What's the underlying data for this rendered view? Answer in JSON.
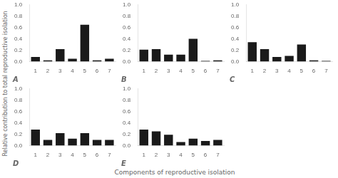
{
  "xlabel": "Components of reproductive isolation",
  "ylabel": "Relative contribution to total reproductive isolation",
  "chart_data": [
    {
      "type": "bar",
      "title": "A",
      "categories": [
        "1",
        "2",
        "3",
        "4",
        "5",
        "6",
        "7"
      ],
      "values": [
        0.08,
        0.02,
        0.22,
        0.05,
        0.65,
        0.02,
        0.05
      ],
      "color": "#1a1a1a",
      "ylim": [
        0.0,
        1.0
      ],
      "yticks": [
        {
          "value": 0,
          "label": "0.0"
        },
        0.2,
        0.4,
        0.6,
        0.8,
        {
          "value": 1,
          "label": "1.0"
        }
      ],
      "grid": false
    },
    {
      "type": "bar",
      "title": "B",
      "categories": [
        "1",
        "2",
        "3",
        "4",
        "5",
        "6",
        "7"
      ],
      "values": [
        0.21,
        0.22,
        0.12,
        0.12,
        0.4,
        0.01,
        0.02
      ],
      "color": "#1a1a1a",
      "ylim": [
        0.0,
        1.0
      ],
      "yticks": [
        {
          "value": 0,
          "label": "0.0"
        },
        0.2,
        0.4,
        0.6,
        0.8,
        {
          "value": 1,
          "label": "1.0"
        }
      ],
      "grid": false
    },
    {
      "type": "bar",
      "title": "C",
      "categories": [
        "1",
        "2",
        "3",
        "4",
        "5",
        "6",
        "7"
      ],
      "values": [
        0.34,
        0.22,
        0.08,
        0.1,
        0.3,
        0.02,
        0.01
      ],
      "color": "#1a1a1a",
      "ylim": [
        0.0,
        1.0
      ],
      "yticks": [
        {
          "value": 0,
          "label": "0.0"
        },
        0.2,
        0.4,
        0.6,
        0.8,
        {
          "value": 1,
          "label": "1.0"
        }
      ],
      "grid": false
    },
    {
      "type": "bar",
      "title": "D",
      "categories": [
        "1",
        "2",
        "3",
        "4",
        "5",
        "6",
        "7"
      ],
      "values": [
        0.28,
        0.1,
        0.22,
        0.12,
        0.22,
        0.1,
        0.1
      ],
      "color": "#1a1a1a",
      "ylim": [
        0.0,
        1.0
      ],
      "yticks": [
        {
          "value": 0,
          "label": "0.0"
        },
        0.2,
        0.4,
        0.6,
        0.8,
        {
          "value": 1,
          "label": "1.0"
        }
      ],
      "grid": false
    },
    {
      "type": "bar",
      "title": "E",
      "categories": [
        "1",
        "2",
        "3",
        "4",
        "5",
        "6",
        "7"
      ],
      "values": [
        0.28,
        0.25,
        0.19,
        0.06,
        0.12,
        0.08,
        0.1
      ],
      "color": "#1a1a1a",
      "ylim": [
        0.0,
        1.0
      ],
      "yticks": [
        {
          "value": 0,
          "label": "0.0"
        },
        0.2,
        0.4,
        0.6,
        0.8,
        {
          "value": 1,
          "label": "1.0"
        }
      ],
      "grid": false
    }
  ]
}
